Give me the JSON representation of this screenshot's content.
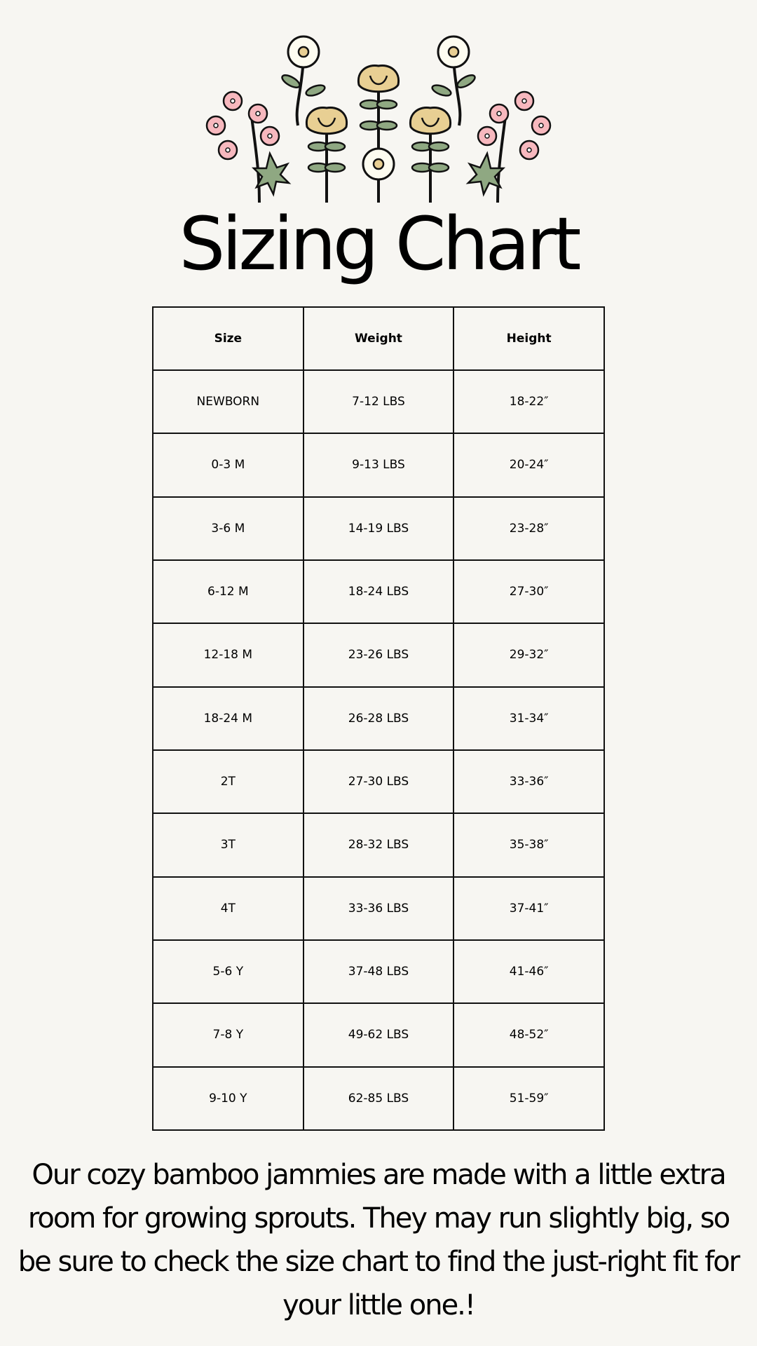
{
  "title": "Sizing Chart",
  "table": {
    "headers": [
      "Size",
      "Weight",
      "Height"
    ],
    "rows": [
      [
        "NEWBORN",
        "7-12 LBS",
        "18-22″"
      ],
      [
        "0-3 M",
        "9-13 LBS",
        "20-24″"
      ],
      [
        "3-6 M",
        "14-19 LBS",
        "23-28″"
      ],
      [
        "6-12 M",
        "18-24 LBS",
        "27-30″"
      ],
      [
        "12-18 M",
        "23-26 LBS",
        "29-32″"
      ],
      [
        "18-24 M",
        "26-28 LBS",
        "31-34″"
      ],
      [
        "2T",
        "27-30 LBS",
        "33-36″"
      ],
      [
        "3T",
        "28-32 LBS",
        "35-38″"
      ],
      [
        "4T",
        "33-36 LBS",
        "37-41″"
      ],
      [
        "5-6 Y",
        "37-48 LBS",
        "41-46″"
      ],
      [
        "7-8 Y",
        "49-62 LBS",
        "48-52″"
      ],
      [
        "9-10 Y",
        "62-85 LBS",
        "51-59″"
      ]
    ]
  },
  "note": "Our cozy bamboo jammies are made with a little extra room for growing sprouts. They may run slightly big, so be sure to check the size chart to find the just-right fit for your little one.!",
  "colors": {
    "background": "#f7f6f2",
    "pink": "#f7b8be",
    "yellow": "#e8cf93",
    "cream": "#fdfcf0",
    "leaf": "#8fa882"
  },
  "illustration": "flower-illustration"
}
